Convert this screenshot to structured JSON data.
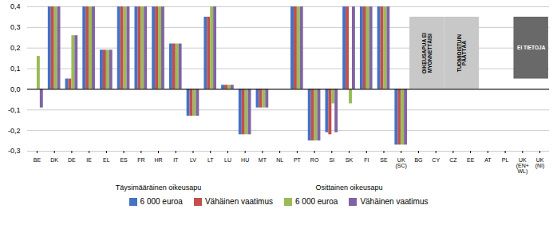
{
  "chart_data": {
    "type": "bar",
    "categories": [
      "BE",
      "DK",
      "DE",
      "IE",
      "EL",
      "ES",
      "FR",
      "HR",
      "IT",
      "LV",
      "LT",
      "LU",
      "HU",
      "MT",
      "NL",
      "PT",
      "RO",
      "SI",
      "SK",
      "FI",
      "SE",
      "UK\n(SC)",
      "BG",
      "CY",
      "CZ",
      "EE",
      "AT",
      "PL",
      "UK\n(EN+\nWL)",
      "UK\n(NI)"
    ],
    "series": [
      {
        "name": "6 000 euroa",
        "color": "#4472C4",
        "values": [
          0.0,
          0.4,
          0.05,
          0.4,
          0.19,
          0.4,
          0.4,
          0.4,
          0.22,
          -0.13,
          0.35,
          0.02,
          -0.22,
          -0.09,
          0.0,
          0.4,
          -0.25,
          -0.21,
          0.4,
          0.4,
          0.4,
          -0.27,
          null,
          null,
          null,
          null,
          null,
          null,
          null,
          null
        ]
      },
      {
        "name": "Vähäinen vaatimus",
        "color": "#C0504D",
        "values": [
          0.0,
          0.4,
          0.05,
          0.4,
          0.19,
          0.4,
          0.4,
          0.4,
          0.22,
          -0.13,
          0.35,
          0.02,
          -0.22,
          -0.09,
          0.0,
          0.4,
          -0.25,
          -0.22,
          0.4,
          0.4,
          0.4,
          -0.27,
          null,
          null,
          null,
          null,
          null,
          null,
          null,
          null
        ]
      },
      {
        "name": "6 000 euroa",
        "color": "#9BBB59",
        "values": [
          0.16,
          0.4,
          0.26,
          0.4,
          0.19,
          0.4,
          0.4,
          0.4,
          0.22,
          -0.13,
          0.4,
          0.02,
          -0.22,
          -0.09,
          0.0,
          0.4,
          -0.25,
          -0.07,
          -0.07,
          0.4,
          0.4,
          -0.27,
          null,
          null,
          null,
          null,
          null,
          null,
          null,
          null
        ]
      },
      {
        "name": "Vähäinen vaatimus",
        "color": "#8064A2",
        "values": [
          -0.09,
          0.4,
          0.26,
          0.4,
          0.19,
          0.4,
          0.4,
          0.4,
          0.22,
          -0.13,
          0.4,
          0.02,
          -0.22,
          -0.09,
          0.0,
          0.4,
          -0.25,
          -0.21,
          0.4,
          0.4,
          0.4,
          -0.27,
          null,
          null,
          null,
          null,
          null,
          null,
          null,
          null
        ]
      }
    ],
    "ylim": [
      -0.3,
      0.4
    ],
    "yticks": [
      {
        "value": -0.3,
        "label": "-0,3"
      },
      {
        "value": -0.2,
        "label": "-0,2"
      },
      {
        "value": -0.1,
        "label": "-0,1"
      },
      {
        "value": 0.0,
        "label": "0,0"
      },
      {
        "value": 0.1,
        "label": "0,1"
      },
      {
        "value": 0.2,
        "label": "0,2"
      },
      {
        "value": 0.3,
        "label": "0,3"
      },
      {
        "value": 0.4,
        "label": "0,4"
      }
    ],
    "grid": true,
    "legend": "bottom",
    "annotations": [
      {
        "text": "OIKEUSAPUA EI\nMYÖNNETTÄISI",
        "x_from": "BG",
        "x_to": "CY",
        "y_from": 0.0,
        "y_to": 0.35,
        "color": "#C8C8C8"
      },
      {
        "text": "TUOMIOISTUIN\nPÄÄTTÄÄ",
        "x_from": "CZ",
        "x_to": "EE",
        "y_from": 0.0,
        "y_to": 0.35,
        "color": "#C8C8C8"
      },
      {
        "text": "EI TIETOJA",
        "x_from": "UK\n(EN+\nWL)",
        "x_to": "UK\n(NI)",
        "y_from": 0.05,
        "y_to": 0.35,
        "color": "#696969"
      },
      {
        "text": "Täysimääräinen oikeusapu",
        "x_from": "BE",
        "x_to": "NL"
      },
      {
        "text": "Osittainen oikeusapu",
        "x_from": "PT",
        "x_to": "UK\n(SC)"
      }
    ]
  }
}
